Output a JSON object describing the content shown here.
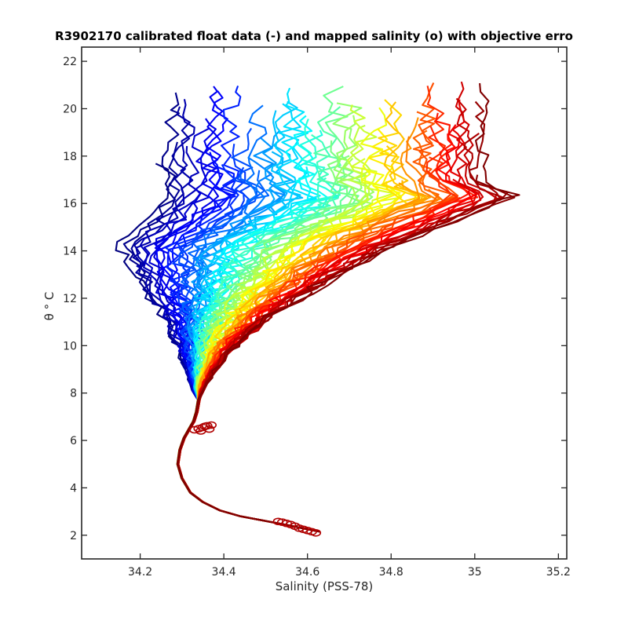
{
  "chart_data": {
    "type": "line",
    "title": "R3902170 calibrated float data (-) and mapped salinity (o) with objective erro",
    "xlabel": "Salinity (PSS-78)",
    "ylabel": "θ ° C",
    "xlim": [
      34.06,
      35.22
    ],
    "ylim": [
      1.0,
      22.6
    ],
    "x_ticks": [
      34.2,
      34.4,
      34.6,
      34.8,
      35.0,
      35.2
    ],
    "x_tick_labels": [
      "34.2",
      "34.4",
      "34.6",
      "34.8",
      "35",
      "35.2"
    ],
    "y_ticks": [
      2,
      4,
      6,
      8,
      10,
      12,
      14,
      16,
      18,
      20,
      22
    ],
    "y_tick_labels": [
      "2",
      "4",
      "6",
      "8",
      "10",
      "12",
      "14",
      "16",
      "18",
      "20",
      "22"
    ],
    "grid": false,
    "colormap": "jet",
    "profile_count": 90,
    "deep_branch": {
      "salinity": [
        34.63,
        34.6,
        34.56,
        34.5,
        34.44,
        34.39,
        34.35,
        34.32,
        34.3,
        34.29,
        34.295,
        34.305,
        34.318,
        34.328,
        34.335,
        34.34
      ],
      "theta": [
        2.15,
        2.25,
        2.4,
        2.6,
        2.8,
        3.05,
        3.4,
        3.8,
        4.4,
        5.0,
        5.6,
        6.1,
        6.5,
        6.8,
        7.2,
        7.7
      ]
    },
    "upper_envelope": {
      "first_profile": {
        "salinity": [
          34.33,
          34.31,
          34.28,
          34.26,
          34.23,
          34.2,
          34.17,
          34.15,
          34.17,
          34.2,
          34.23,
          34.25,
          34.26,
          34.24,
          34.26
        ],
        "theta": [
          7.9,
          9.0,
          10.2,
          11.0,
          11.8,
          12.6,
          13.4,
          14.1,
          14.6,
          15.1,
          15.6,
          16.3,
          17.2,
          18.0,
          18.9
        ]
      },
      "last_profile": {
        "salinity": [
          34.34,
          34.38,
          34.44,
          34.52,
          34.62,
          34.72,
          34.82,
          34.92,
          35.0,
          35.06,
          35.1,
          35.02
        ],
        "theta": [
          7.9,
          9.0,
          10.2,
          11.3,
          12.4,
          13.4,
          14.3,
          15.0,
          15.6,
          16.0,
          16.3,
          16.9
        ]
      }
    },
    "mapped_salinity_markers": [
      {
        "salinity": 34.62,
        "theta": 2.1
      },
      {
        "salinity": 34.61,
        "theta": 2.15
      },
      {
        "salinity": 34.6,
        "theta": 2.2
      },
      {
        "salinity": 34.59,
        "theta": 2.25
      },
      {
        "salinity": 34.58,
        "theta": 2.3
      },
      {
        "salinity": 34.57,
        "theta": 2.38
      },
      {
        "salinity": 34.56,
        "theta": 2.45
      },
      {
        "salinity": 34.55,
        "theta": 2.5
      },
      {
        "salinity": 34.54,
        "theta": 2.55
      },
      {
        "salinity": 34.53,
        "theta": 2.58
      },
      {
        "salinity": 34.33,
        "theta": 6.45
      },
      {
        "salinity": 34.34,
        "theta": 6.5
      },
      {
        "salinity": 34.35,
        "theta": 6.55
      },
      {
        "salinity": 34.355,
        "theta": 6.6
      },
      {
        "salinity": 34.36,
        "theta": 6.62
      },
      {
        "salinity": 34.37,
        "theta": 6.65
      },
      {
        "salinity": 34.345,
        "theta": 6.4
      },
      {
        "salinity": 34.365,
        "theta": 6.48
      }
    ],
    "marker_color": "#b00000",
    "axis_color": "#262626"
  }
}
